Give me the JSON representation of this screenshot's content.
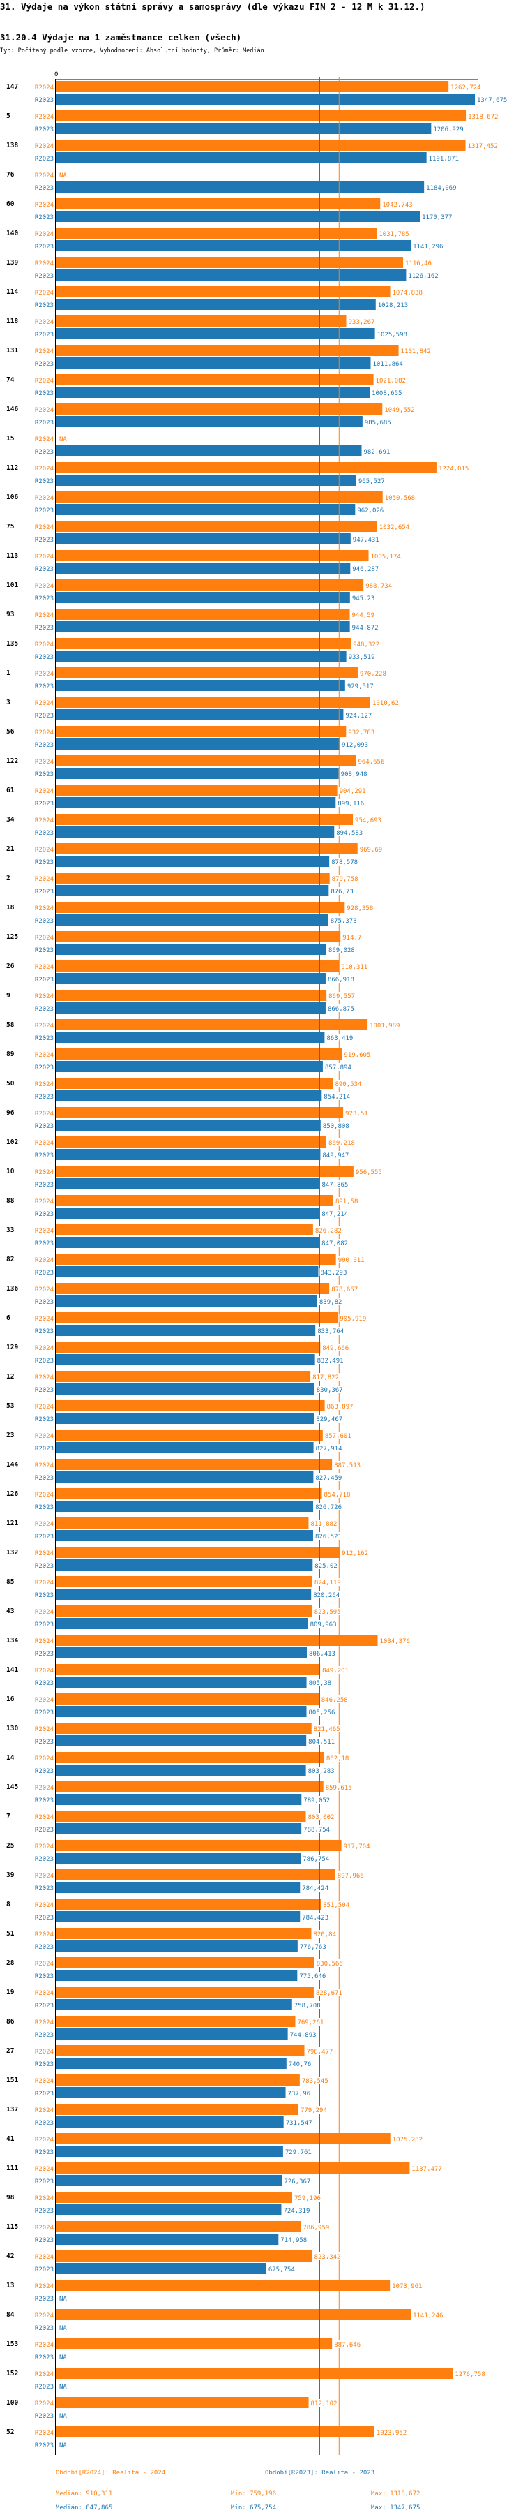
{
  "title": "31. Výdaje na výkon státní správy a samosprávy (dle výkazu FIN 2 - 12 M k 31.12.)",
  "subtitle": "31.20.4 Výdaje na 1 zaměstnance celkem (všech)",
  "meta": "Typ: Počítaný podle vzorce, Vyhodnocení: Absolutní hodnoty, Průměr: Medián",
  "colors": {
    "R2024": "#ff7f0e",
    "R2023": "#1f77b4"
  },
  "na_label": "NA",
  "chart_data": {
    "type": "bar",
    "orientation": "horizontal",
    "x_tick_labels": [
      "0"
    ],
    "xlim": [
      0,
      1347.675
    ],
    "categories": [
      "147",
      "5",
      "138",
      "76",
      "60",
      "140",
      "139",
      "114",
      "118",
      "131",
      "74",
      "146",
      "15",
      "112",
      "106",
      "75",
      "113",
      "101",
      "93",
      "135",
      "1",
      "3",
      "56",
      "122",
      "61",
      "34",
      "21",
      "2",
      "18",
      "125",
      "26",
      "9",
      "58",
      "89",
      "50",
      "96",
      "102",
      "10",
      "88",
      "33",
      "82",
      "136",
      "6",
      "129",
      "12",
      "53",
      "23",
      "144",
      "126",
      "121",
      "132",
      "85",
      "43",
      "134",
      "141",
      "16",
      "130",
      "14",
      "145",
      "7",
      "25",
      "39",
      "8",
      "51",
      "28",
      "19",
      "86",
      "27",
      "151",
      "137",
      "41",
      "111",
      "98",
      "115",
      "42",
      "13",
      "84",
      "153",
      "152",
      "100",
      "52"
    ],
    "series": [
      {
        "name": "R2024",
        "color": "#ff7f0e",
        "values": [
          1262.724,
          1318.672,
          1317.452,
          null,
          1042.743,
          1031.785,
          1116.46,
          1074.838,
          933.267,
          1101.842,
          1021.082,
          1049.552,
          null,
          1224.015,
          1050.568,
          1032.654,
          1005.174,
          988.734,
          944.59,
          948.322,
          970.228,
          1010.62,
          932.783,
          964.656,
          904.291,
          954.693,
          969.69,
          879.758,
          928.358,
          914.7,
          910.311,
          869.557,
          1001.989,
          919.605,
          890.534,
          923.51,
          869.218,
          956.555,
          891.58,
          826.282,
          900.011,
          878.667,
          905.919,
          849.666,
          817.822,
          863.897,
          857.601,
          887.513,
          854.718,
          811.882,
          912.162,
          824.119,
          823.595,
          1034.376,
          849.201,
          846.258,
          821.465,
          862.18,
          859.615,
          803.002,
          917.704,
          897.966,
          851.504,
          820.84,
          830.566,
          828.671,
          769.261,
          798.477,
          783.545,
          779.294,
          1075.282,
          1137.477,
          759.196,
          786.959,
          823.342,
          1073.961,
          1141.246,
          887.646,
          1276.758,
          812.102,
          1023.952
        ]
      },
      {
        "name": "R2023",
        "color": "#1f77b4",
        "values": [
          1347.675,
          1206.929,
          1191.871,
          1184.069,
          1170.377,
          1141.296,
          1126.162,
          1028.213,
          1025.598,
          1011.864,
          1008.655,
          985.685,
          982.691,
          965.527,
          962.026,
          947.431,
          946.287,
          945.23,
          944.872,
          933.519,
          929.517,
          924.127,
          912.093,
          908.948,
          899.116,
          894.583,
          878.578,
          876.73,
          875.373,
          869.028,
          866.918,
          866.875,
          863.419,
          857.894,
          854.214,
          850.808,
          849.947,
          847.865,
          847.214,
          847.082,
          843.293,
          839.82,
          833.764,
          832.491,
          830.367,
          829.467,
          827.914,
          827.459,
          826.726,
          826.521,
          825.02,
          820.264,
          809.963,
          806.413,
          805.38,
          805.256,
          804.511,
          803.283,
          789.052,
          788.754,
          786.754,
          784.424,
          784.423,
          776.763,
          775.646,
          758.708,
          744.893,
          740.76,
          737.96,
          731.547,
          729.761,
          726.367,
          724.319,
          714.958,
          675.754,
          null,
          null,
          null,
          null,
          null,
          null
        ]
      }
    ],
    "medians": {
      "R2024": 910.311,
      "R2023": 847.865
    },
    "grid": false
  },
  "legend": {
    "r2024": "Období[R2024]: Realita - 2024",
    "r2023": "Období[R2023]: Realita - 2023"
  },
  "stats": {
    "r2024": {
      "median": "Medián: 910,311",
      "min": "Min: 759,196",
      "max": "Max: 1318,672"
    },
    "r2023": {
      "median": "Medián: 847,865",
      "min": "Min: 675,754",
      "max": "Max: 1347,675"
    }
  }
}
